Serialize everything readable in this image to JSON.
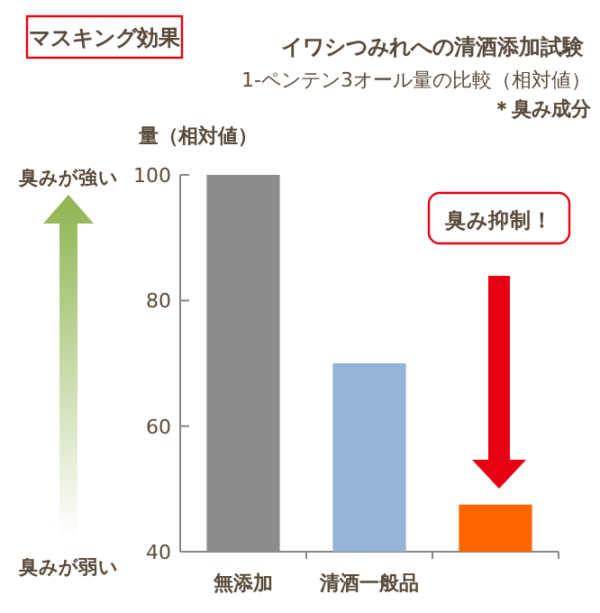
{
  "chart_data": {
    "type": "bar",
    "title": "イワシつみれへの清酒添加試験",
    "subtitle": "1-ペンテン3オール量の比較（相対値）",
    "ylabel": "量（相対値）",
    "annotations": [
      "マスキング効果",
      "＊臭み成分",
      "臭みが強い",
      "臭みが弱い",
      "臭み抑制！"
    ],
    "categories": [
      "無添加",
      "清酒一般品",
      null
    ],
    "values": [
      100,
      70,
      47.5
    ],
    "colors": [
      "#8c8c8c",
      "#95b3d7",
      "#ff6600"
    ],
    "ylim": [
      40,
      100
    ],
    "yticks": [
      40,
      60,
      80,
      100
    ],
    "grid": false
  }
}
